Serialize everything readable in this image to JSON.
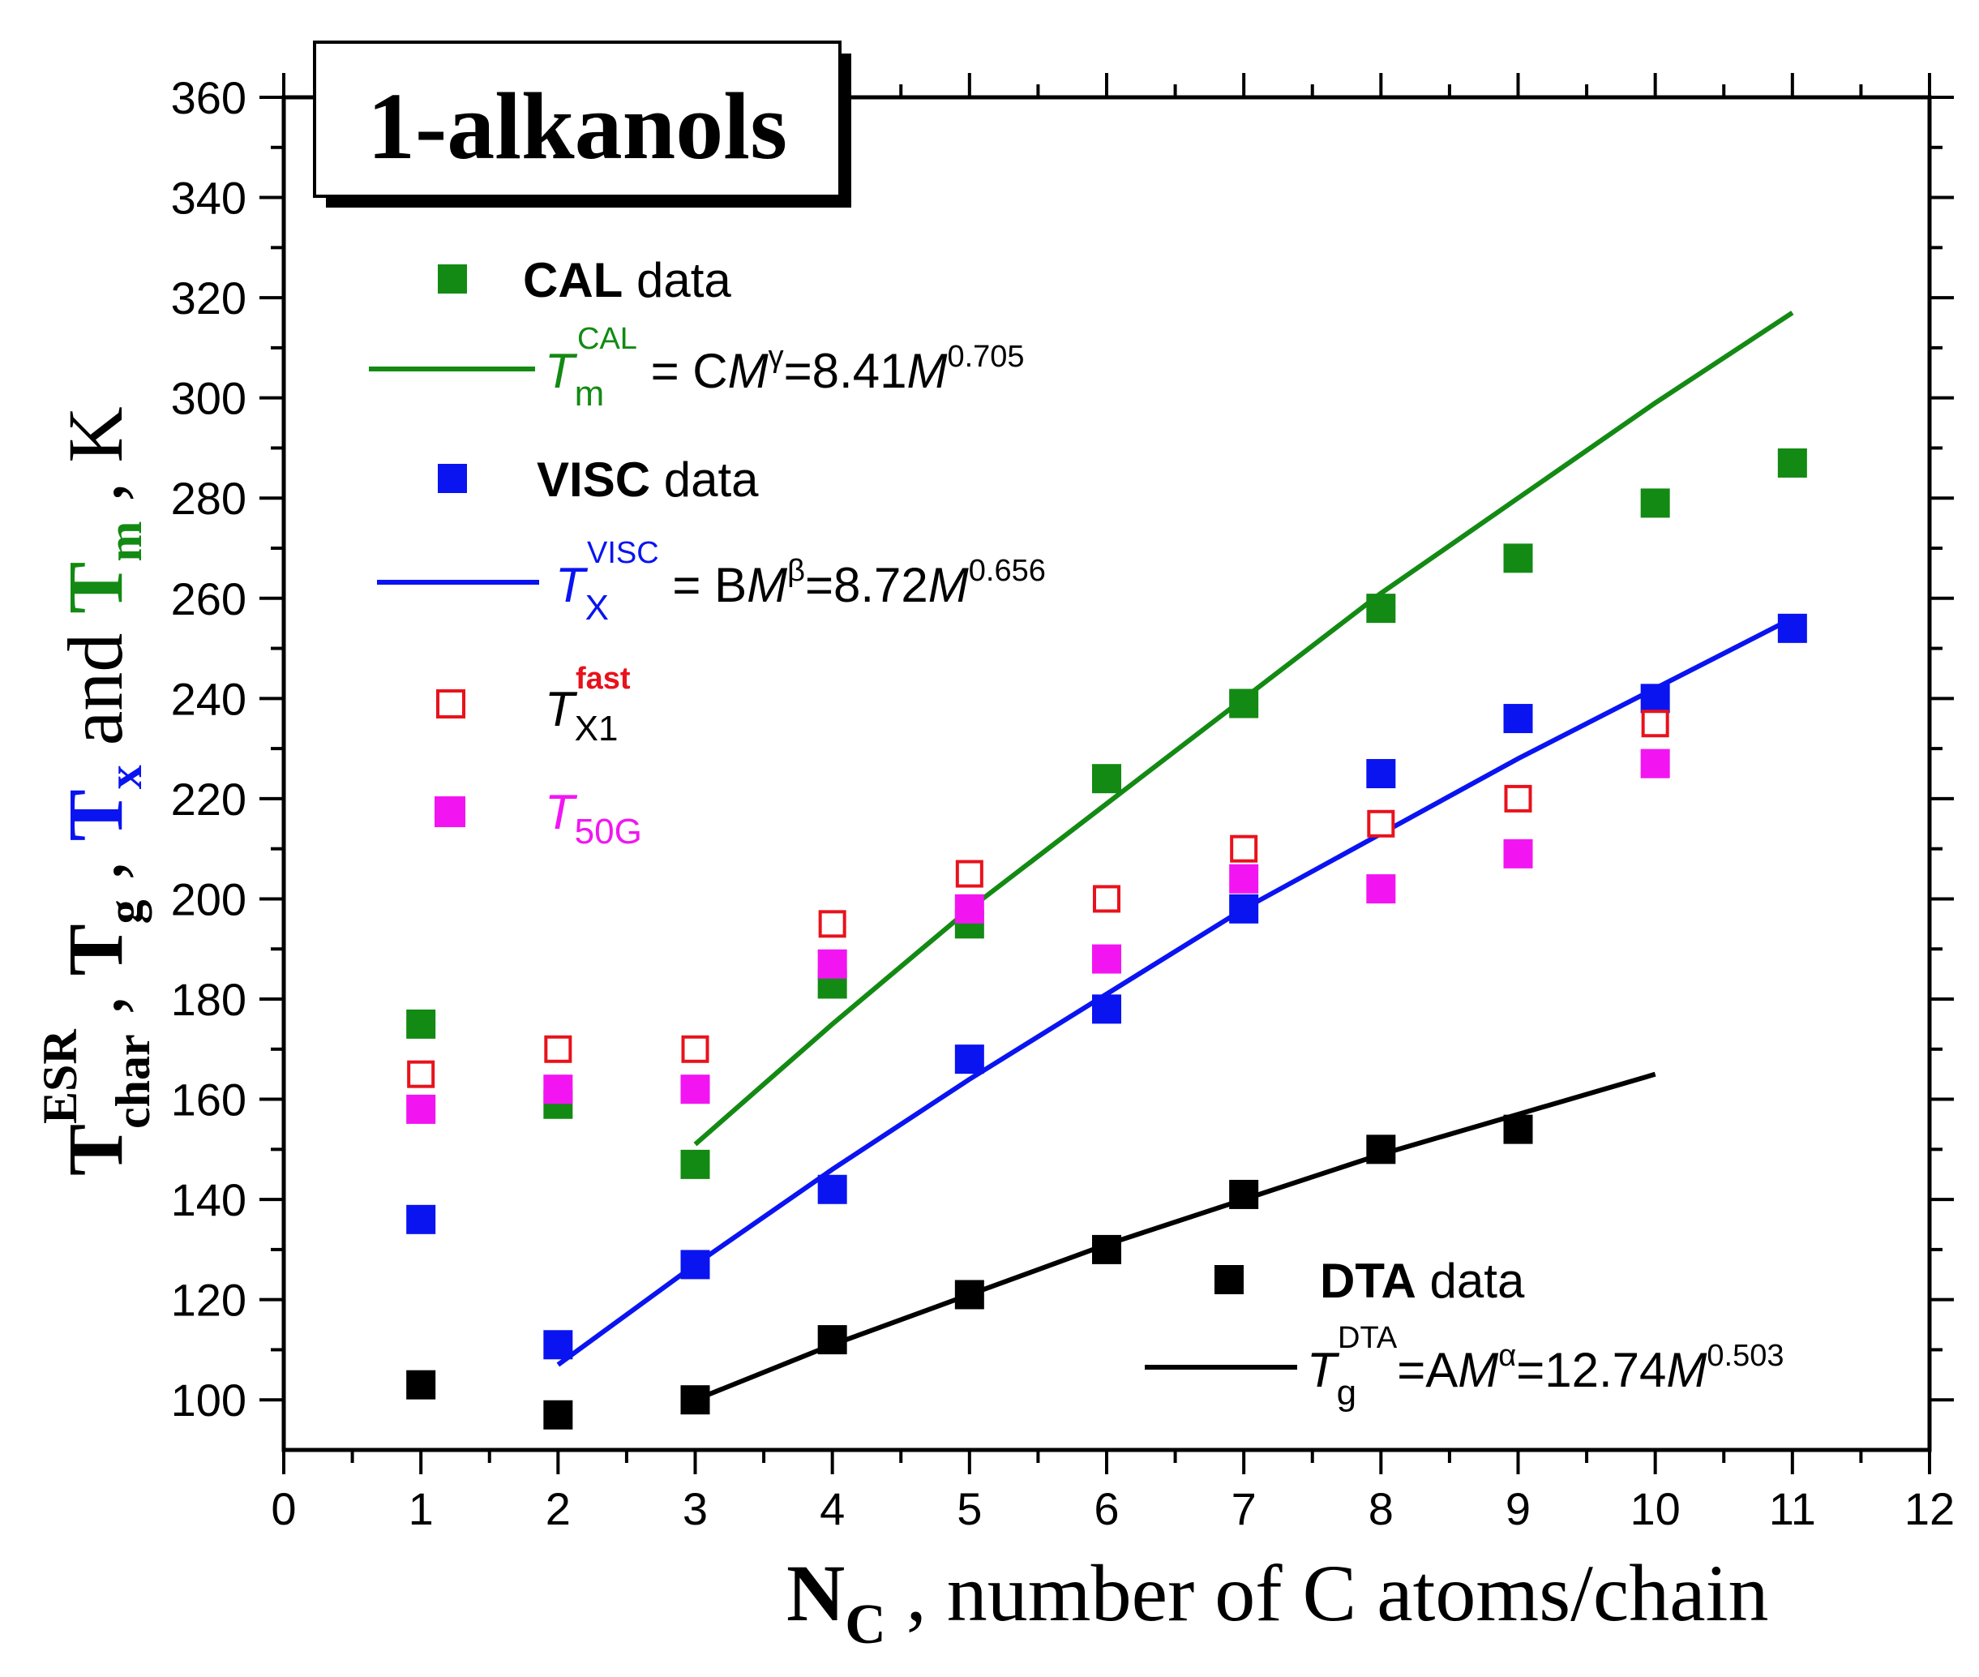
{
  "chart_data": {
    "type": "scatter",
    "title": "1-alkanols",
    "xlabel": {
      "main": "N",
      "sub": "C",
      "rest": " , number of C atoms/chain"
    },
    "ylabel": {
      "t": "T",
      "sup_esr": "ESR",
      "sub_char": "char",
      "g": "g",
      "x": "x",
      "and": " and ",
      "m": "m",
      "comma": " , ",
      "unit": "K"
    },
    "xlim": [
      0,
      12
    ],
    "ylim": [
      90,
      360
    ],
    "xticks": [
      "0",
      "1",
      "2",
      "3",
      "4",
      "5",
      "6",
      "7",
      "8",
      "9",
      "10",
      "11",
      "12"
    ],
    "yticks": [
      "100",
      "120",
      "140",
      "160",
      "180",
      "200",
      "220",
      "240",
      "260",
      "280",
      "300",
      "320",
      "340",
      "360"
    ],
    "colors": {
      "cal": "#138a13",
      "visc": "#0a14f0",
      "txfast": "#e8121c",
      "t50g": "#f215f2",
      "dta": "#000000"
    },
    "series": [
      {
        "key": "cal",
        "name": "CAL data",
        "marker": "square-filled",
        "x": [
          1,
          2,
          3,
          4,
          5,
          6,
          7,
          8,
          9,
          10,
          11
        ],
        "y": [
          175,
          159,
          147,
          183,
          195,
          224,
          239,
          258,
          268,
          279,
          287
        ]
      },
      {
        "key": "visc",
        "name": "VISC data",
        "marker": "square-filled",
        "x": [
          1,
          2,
          3,
          4,
          5,
          6,
          7,
          8,
          9,
          10,
          11
        ],
        "y": [
          136,
          111,
          127,
          142,
          168,
          178,
          198,
          225,
          236,
          240,
          254
        ]
      },
      {
        "key": "txfast",
        "name": "T_X1^fast",
        "marker": "square-open",
        "x": [
          1,
          2,
          3,
          4,
          5,
          6,
          7,
          8,
          9,
          10
        ],
        "y": [
          165,
          170,
          170,
          195,
          205,
          200,
          210,
          215,
          220,
          235
        ]
      },
      {
        "key": "t50g",
        "name": "T_50G",
        "marker": "square-filled",
        "x": [
          1,
          2,
          3,
          4,
          5,
          6,
          7,
          8,
          9,
          10
        ],
        "y": [
          158,
          162,
          162,
          187,
          198,
          188,
          204,
          202,
          209,
          227
        ]
      },
      {
        "key": "dta",
        "name": "DTA data",
        "marker": "square-filled",
        "x": [
          1,
          2,
          3,
          4,
          5,
          6,
          7,
          8,
          9
        ],
        "y": [
          103,
          97,
          100,
          112,
          121,
          130,
          141,
          150,
          154
        ]
      }
    ],
    "fits": [
      {
        "key": "cal",
        "formula": "Tm^CAL = C M^γ = 8.41 M^0.705",
        "x": [
          3,
          4,
          5,
          6,
          7,
          8,
          9,
          10,
          11
        ],
        "y": [
          151,
          175,
          198,
          219,
          240,
          261,
          280,
          299,
          317
        ]
      },
      {
        "key": "visc",
        "formula": "TX^VISC = B M^β = 8.72 M^0.656",
        "x": [
          2,
          3,
          4,
          5,
          6,
          7,
          8,
          9,
          10,
          11
        ],
        "y": [
          107,
          127,
          146,
          164,
          181,
          198,
          213,
          228,
          242,
          256
        ]
      },
      {
        "key": "dta",
        "formula": "Tg^DTA = A M^α = 12.74 M^0.503",
        "x": [
          3,
          4,
          5,
          6,
          7,
          8,
          9,
          10
        ],
        "y": [
          100,
          111,
          121,
          131,
          140,
          149,
          157,
          165
        ]
      }
    ]
  },
  "legend": {
    "cal_bold": "CAL",
    "data_word": " data",
    "visc_bold": "VISC",
    "dta_bold": "DTA",
    "cal_fit": {
      "T": "T",
      "sub": "m",
      "sup": "CAL",
      "mid": " = C",
      "M": "M",
      "greek": "γ",
      "eq": "=8.41",
      "M2": "M",
      "exp": "0.705"
    },
    "visc_fit": {
      "T": "T",
      "sub": "X",
      "sup": "VISC",
      "mid": " = B",
      "M": "M",
      "greek": "β",
      "eq": "=8.72",
      "M2": "M",
      "exp": "0.656"
    },
    "dta_fit": {
      "T": "T",
      "sub": "g",
      "sup": "DTA",
      "mid": "=A",
      "M": "M",
      "greek": "α",
      "eq": "=12.74",
      "M2": "M",
      "exp": "0.503"
    },
    "txfast": {
      "T": "T",
      "sub": "X1",
      "sup": "fast"
    },
    "t50g": {
      "T": "T",
      "sub": "50G"
    }
  }
}
